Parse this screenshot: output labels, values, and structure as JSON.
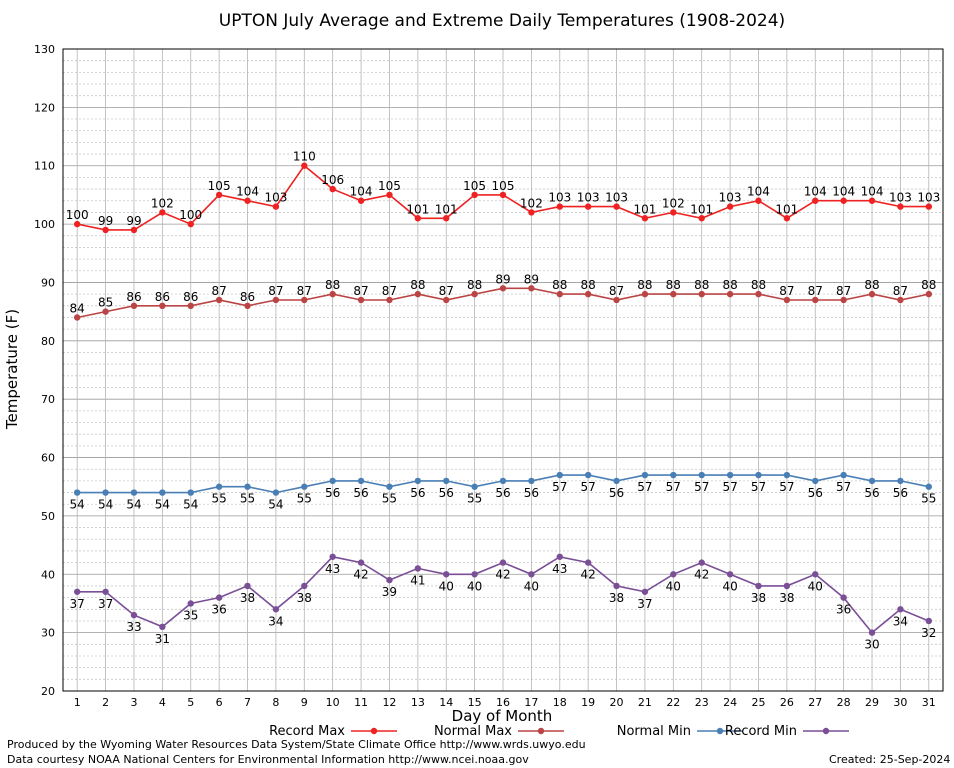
{
  "chart_data": {
    "type": "line",
    "title": "UPTON July Average and Extreme Daily Temperatures (1908-2024)",
    "xlabel": "Day of Month",
    "ylabel": "Temperature (F)",
    "ylim": [
      20,
      130
    ],
    "yticks": [
      "20",
      "30",
      "40",
      "50",
      "60",
      "70",
      "80",
      "90",
      "100",
      "110",
      "120",
      "130"
    ],
    "x": [
      "1",
      "2",
      "3",
      "4",
      "5",
      "6",
      "7",
      "8",
      "9",
      "10",
      "11",
      "12",
      "13",
      "14",
      "15",
      "16",
      "17",
      "18",
      "19",
      "20",
      "21",
      "22",
      "23",
      "24",
      "25",
      "26",
      "27",
      "28",
      "29",
      "30",
      "31"
    ],
    "grid": true,
    "legend_position": "bottom",
    "series": [
      {
        "name": "Record Max",
        "color": "#ee2222",
        "label_position": "above",
        "values": [
          100,
          99,
          99,
          102,
          100,
          105,
          104,
          103,
          110,
          106,
          104,
          105,
          101,
          101,
          105,
          105,
          102,
          103,
          103,
          103,
          101,
          102,
          101,
          103,
          104,
          101,
          104,
          104,
          104,
          103,
          103
        ]
      },
      {
        "name": "Normal Max",
        "color": "#bb4444",
        "label_position": "above",
        "values": [
          84,
          85,
          86,
          86,
          86,
          87,
          86,
          87,
          87,
          88,
          87,
          87,
          88,
          87,
          88,
          89,
          89,
          88,
          88,
          87,
          88,
          88,
          88,
          88,
          88,
          87,
          87,
          87,
          88,
          87,
          88
        ]
      },
      {
        "name": "Normal Min",
        "color": "#4a7fb5",
        "label_position": "below",
        "values": [
          54,
          54,
          54,
          54,
          54,
          55,
          55,
          54,
          55,
          56,
          56,
          55,
          56,
          56,
          55,
          56,
          56,
          57,
          57,
          56,
          57,
          57,
          57,
          57,
          57,
          57,
          56,
          57,
          56,
          56,
          55
        ]
      },
      {
        "name": "Record Min",
        "color": "#7a4f96",
        "label_position": "below",
        "values": [
          37,
          37,
          33,
          31,
          35,
          36,
          38,
          34,
          38,
          43,
          42,
          39,
          41,
          40,
          40,
          42,
          40,
          43,
          42,
          38,
          37,
          40,
          42,
          40,
          38,
          38,
          40,
          36,
          30,
          34,
          32
        ]
      }
    ]
  },
  "footer": {
    "produced_by": "Produced by the Wyoming Water Resources Data System/State Climate Office http://www.wrds.uwyo.edu",
    "data_courtesy": "Data courtesy NOAA National Centers for Environmental Information http://www.ncei.noaa.gov",
    "created": "Created:  25-Sep-2024"
  }
}
